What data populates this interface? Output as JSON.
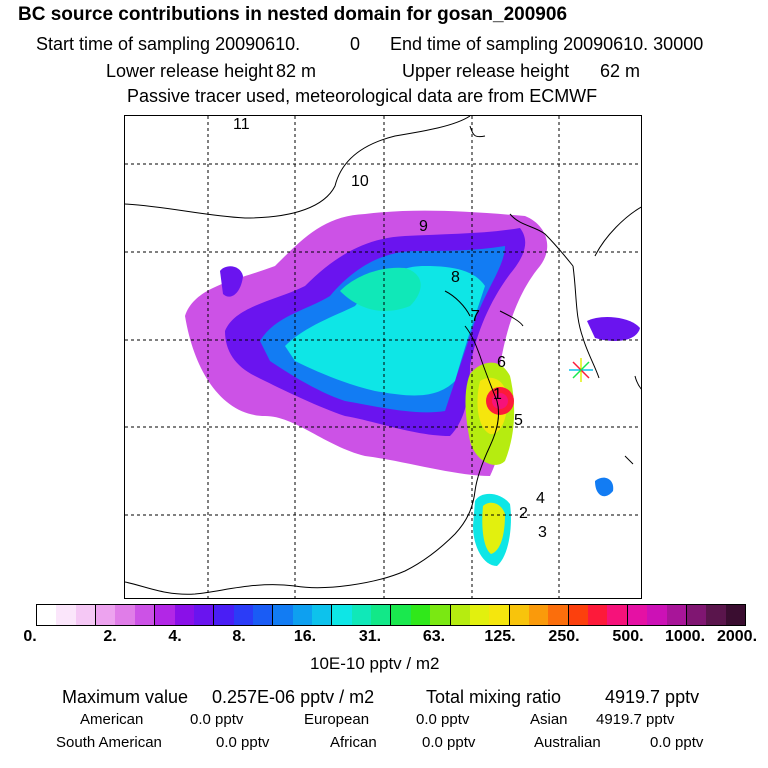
{
  "title": "BC  source contributions in nested domain for gosan_200906",
  "header": {
    "start_label": "Start time of sampling 20090610.",
    "start_value": "0",
    "end_label": "End time of sampling 20090610. 30000",
    "lower_label": "Lower release height",
    "lower_value": "82 m",
    "upper_label": "Upper release height",
    "upper_value": "62 m",
    "note": "Passive tracer used, meteorological data are from ECMWF"
  },
  "map": {
    "numbers": [
      "1",
      "2",
      "3",
      "4",
      "5",
      "6",
      "7",
      "8",
      "9",
      "10",
      "11"
    ],
    "receptor_marker": "asterisk-marker"
  },
  "colorbar": {
    "ticks": [
      "0.",
      "2.",
      "4.",
      "8.",
      "16.",
      "31.",
      "63.",
      "125.",
      "250.",
      "500.",
      "1000.",
      "2000."
    ],
    "colors": [
      "#ffffff",
      "#fbe6fb",
      "#f5c8f5",
      "#eda3ef",
      "#e07de8",
      "#cc52e6",
      "#b227e6",
      "#8a10e8",
      "#6a14ef",
      "#4a1ef5",
      "#2b3cf7",
      "#1a5cf5",
      "#127cf3",
      "#0ea0f0",
      "#0dc2ec",
      "#0ee6e6",
      "#10e8b8",
      "#12e888",
      "#1ae84e",
      "#30e81a",
      "#7ae812",
      "#b6ec10",
      "#e2f00e",
      "#f5e60d",
      "#f8c40c",
      "#fa9a0b",
      "#fb6e0c",
      "#fc400d",
      "#fd1a3a",
      "#f6127a",
      "#e511a4",
      "#cc11b6",
      "#a81599",
      "#801672",
      "#5a154c",
      "#3a0d30"
    ],
    "unit": "10E-10 pptv / m2"
  },
  "footer": {
    "max_label": "Maximum value",
    "max_value": "0.257E-06 pptv / m2",
    "total_label": "Total mixing ratio",
    "total_value": "4919.7 pptv",
    "american_label": "American",
    "american_value": "0.0 pptv",
    "european_label": "European",
    "european_value": "0.0 pptv",
    "asian_label": "Asian",
    "asian_value": "4919.7 pptv",
    "south_american_label": "South American",
    "south_american_value": "0.0 pptv",
    "african_label": "African",
    "african_value": "0.0 pptv",
    "australian_label": "Australian",
    "australian_value": "0.0 pptv"
  }
}
